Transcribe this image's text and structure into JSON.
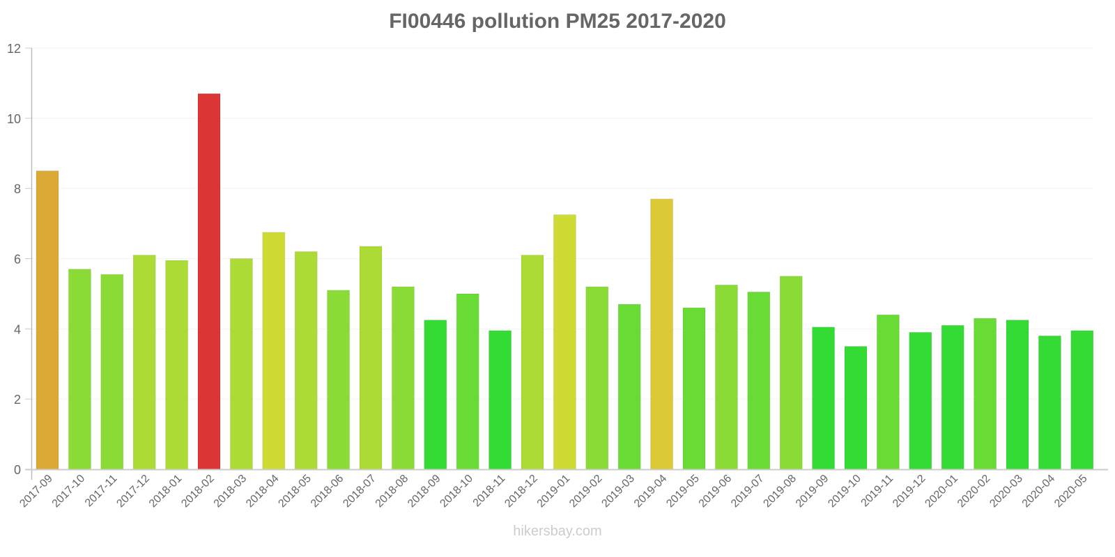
{
  "title": "FI00446 pollution PM25 2017-2020",
  "watermark": "hikersbay.com",
  "chart_data": {
    "type": "bar",
    "title": "FI00446 pollution PM25 2017-2020",
    "xlabel": "",
    "ylabel": "",
    "ylim": [
      0,
      12
    ],
    "yticks": [
      0,
      2,
      4,
      6,
      8,
      10,
      12
    ],
    "grid": true,
    "legend": null,
    "categories": [
      "2017-09",
      "2017-10",
      "2017-11",
      "2017-12",
      "2018-01",
      "2018-02",
      "2018-03",
      "2018-04",
      "2018-05",
      "2018-06",
      "2018-07",
      "2018-08",
      "2018-09",
      "2018-10",
      "2018-11",
      "2018-12",
      "2019-01",
      "2019-02",
      "2019-03",
      "2019-04",
      "2019-05",
      "2019-06",
      "2019-07",
      "2019-08",
      "2019-09",
      "2019-10",
      "2019-11",
      "2019-12",
      "2020-01",
      "2020-02",
      "2020-03",
      "2020-04",
      "2020-05"
    ],
    "values": [
      8.5,
      5.7,
      5.55,
      6.1,
      5.95,
      10.7,
      6.0,
      6.75,
      6.2,
      5.1,
      6.35,
      5.2,
      4.25,
      5.0,
      3.95,
      6.1,
      7.25,
      5.2,
      4.7,
      7.7,
      4.6,
      5.25,
      5.05,
      5.5,
      4.05,
      3.5,
      4.4,
      3.9,
      4.1,
      4.3,
      4.25,
      3.8,
      3.95
    ],
    "colors": [
      "#dba935",
      "#8adb35",
      "#8adb35",
      "#acdb35",
      "#acdb35",
      "#db3535",
      "#acdb35",
      "#cedb35",
      "#acdb35",
      "#8adb35",
      "#acdb35",
      "#8adb35",
      "#35db35",
      "#68db35",
      "#35db35",
      "#acdb35",
      "#cedb35",
      "#8adb35",
      "#68db35",
      "#dbc935",
      "#68db35",
      "#8adb35",
      "#68db35",
      "#8adb35",
      "#35db35",
      "#35db35",
      "#68db35",
      "#35db35",
      "#35db35",
      "#68db35",
      "#35db35",
      "#35db35",
      "#35db35"
    ]
  }
}
